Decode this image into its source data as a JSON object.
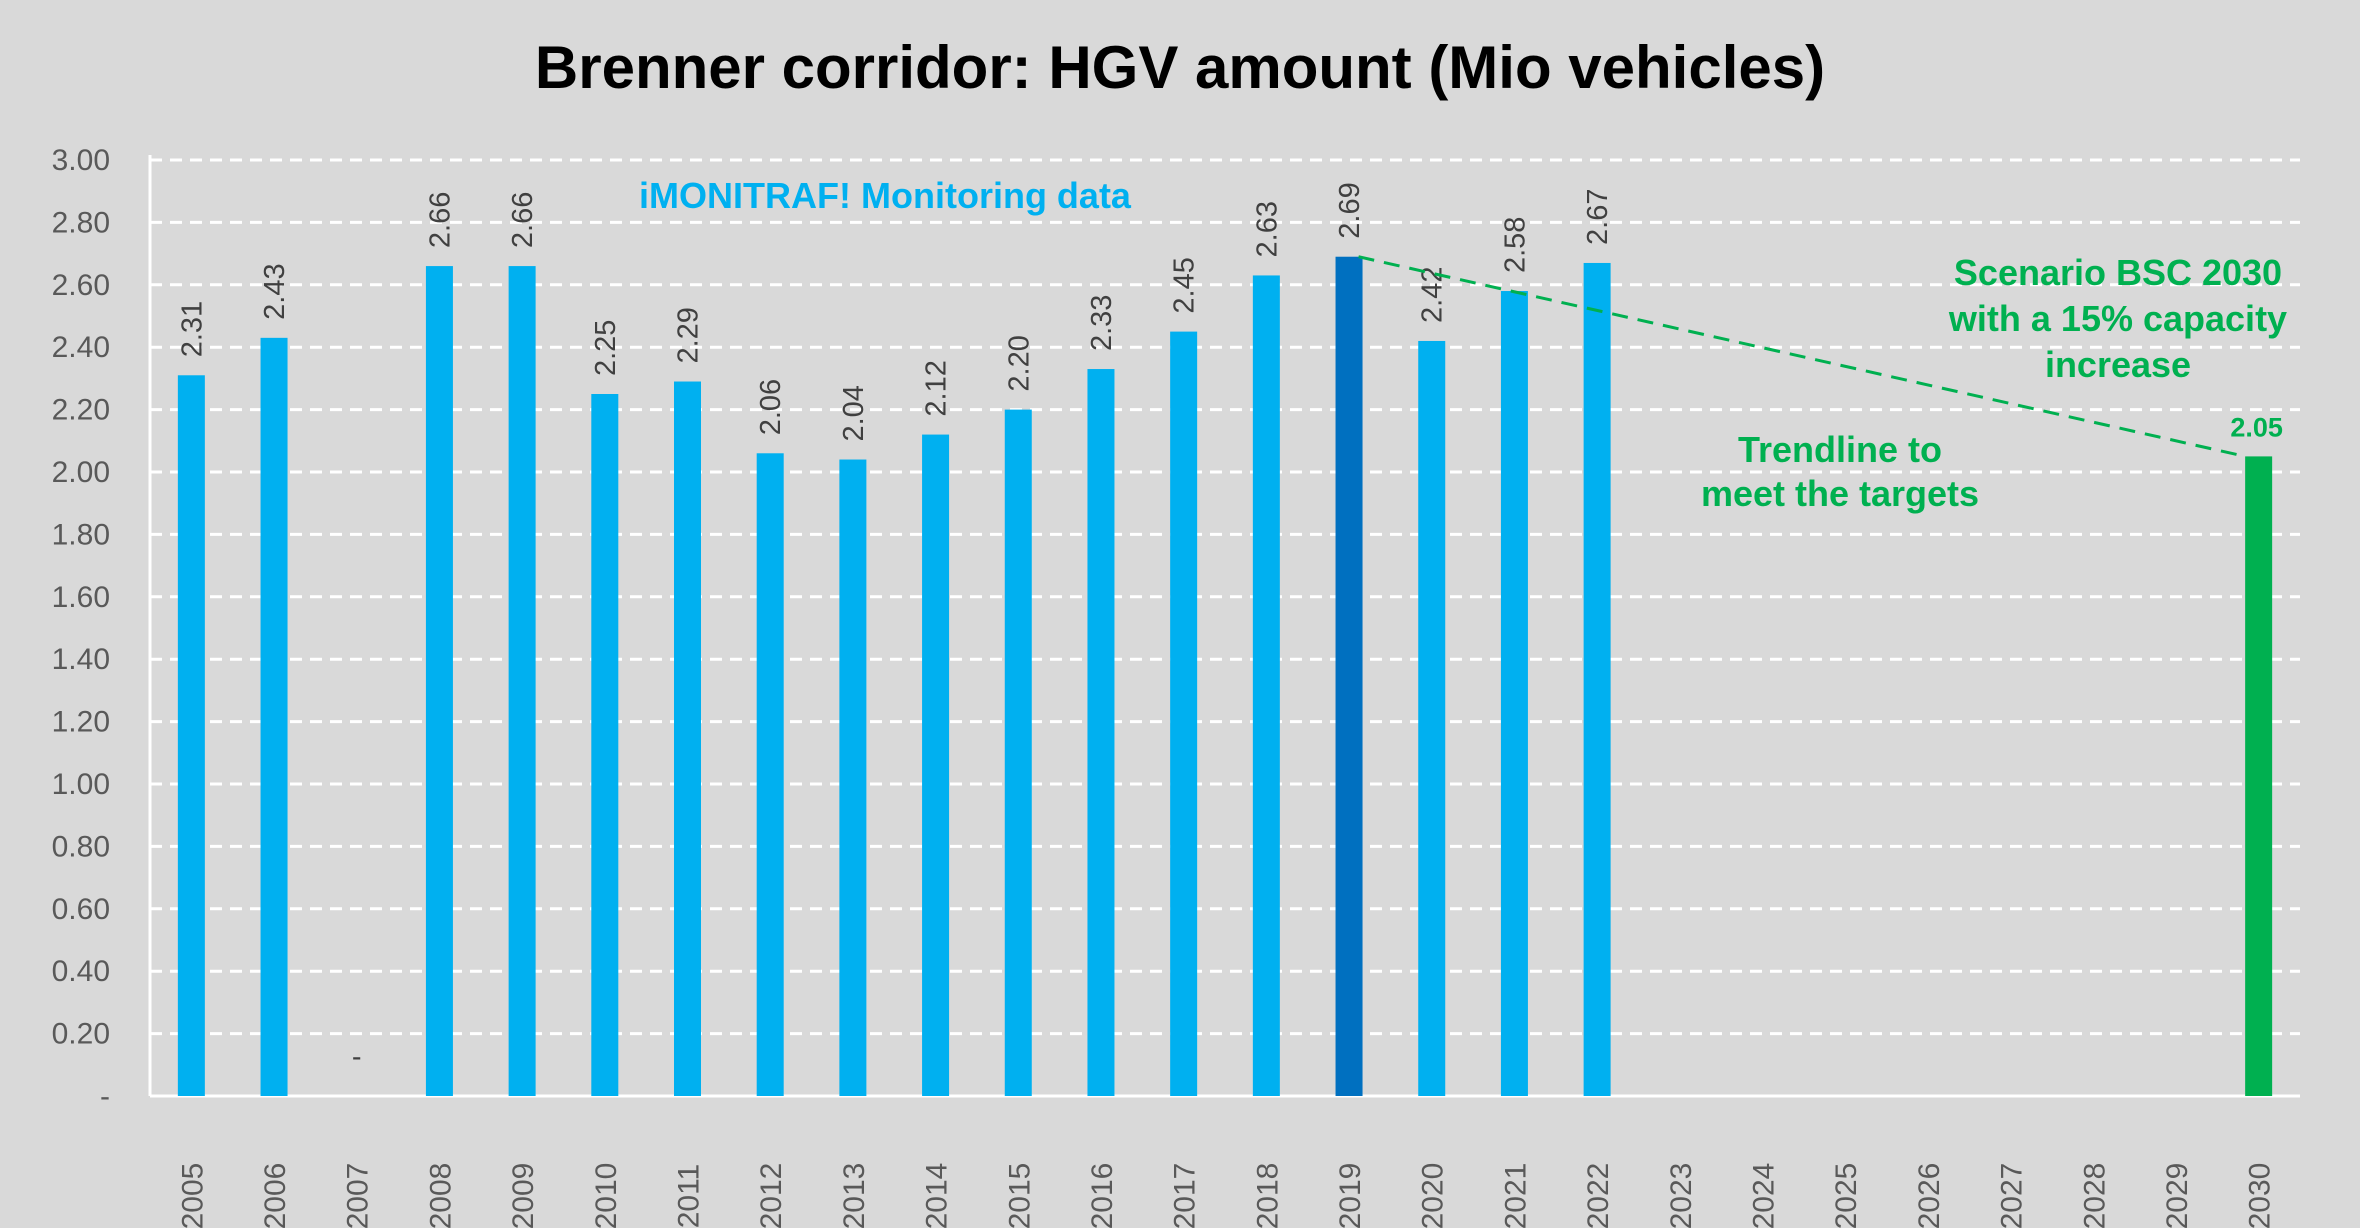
{
  "chart_data": {
    "type": "bar",
    "title": "Brenner corridor: HGV amount (Mio vehicles)",
    "xlabel": "",
    "ylabel": "",
    "ylim": [
      0,
      3.0
    ],
    "yticks": [
      "-",
      "0.20",
      "0.40",
      "0.60",
      "0.80",
      "1.00",
      "1.20",
      "1.40",
      "1.60",
      "1.80",
      "2.00",
      "2.20",
      "2.40",
      "2.60",
      "2.80",
      "3.00"
    ],
    "ytick_values": [
      0,
      0.2,
      0.4,
      0.6,
      0.8,
      1.0,
      1.2,
      1.4,
      1.6,
      1.8,
      2.0,
      2.2,
      2.4,
      2.6,
      2.8,
      3.0
    ],
    "grid": "horizontal dashed",
    "categories": [
      "2005",
      "2006",
      "2007",
      "2008",
      "2009",
      "2010",
      "2011",
      "2012",
      "2013",
      "2014",
      "2015",
      "2016",
      "2017",
      "2018",
      "2019",
      "2020",
      "2021",
      "2022",
      "2023",
      "2024",
      "2025",
      "2026",
      "2027",
      "2028",
      "2029",
      "2030"
    ],
    "values": [
      2.31,
      2.43,
      0,
      2.66,
      2.66,
      2.25,
      2.29,
      2.06,
      2.04,
      2.12,
      2.2,
      2.33,
      2.45,
      2.63,
      2.69,
      2.42,
      2.58,
      2.67,
      null,
      null,
      null,
      null,
      null,
      null,
      null,
      2.05
    ],
    "value_labels": [
      "2.31",
      "2.43",
      "-",
      "2.66",
      "2.66",
      "2.25",
      "2.29",
      "2.06",
      "2.04",
      "2.12",
      "2.20",
      "2.33",
      "2.45",
      "2.63",
      "2.69",
      "2.42",
      "2.58",
      "2.67",
      "",
      "",
      "",
      "",
      "",
      "",
      "",
      "2.05"
    ],
    "bar_colors": [
      "#00b0f0",
      "#00b0f0",
      "#00b0f0",
      "#00b0f0",
      "#00b0f0",
      "#00b0f0",
      "#00b0f0",
      "#00b0f0",
      "#00b0f0",
      "#00b0f0",
      "#00b0f0",
      "#00b0f0",
      "#00b0f0",
      "#00b0f0",
      "#0070c0",
      "#00b0f0",
      "#00b0f0",
      "#00b0f0",
      "#00b0f0",
      "#00b0f0",
      "#00b0f0",
      "#00b0f0",
      "#00b0f0",
      "#00b0f0",
      "#00b0f0",
      "#00b050"
    ],
    "trendline": {
      "from": [
        "2019",
        2.69
      ],
      "to": [
        "2030",
        2.05
      ],
      "color": "#00b050",
      "style": "dashed"
    },
    "annotations": {
      "monitoring": {
        "text": "iMONITRAF! Monitoring data",
        "color": "#00b0f0"
      },
      "trend": {
        "lines": [
          "Trendline to",
          "meet the targets"
        ],
        "color": "#00b050"
      },
      "scenario": {
        "lines": [
          "Scenario BSC 2030",
          "with a 15% capacity",
          "increase"
        ],
        "color": "#00b050"
      }
    },
    "colors": {
      "background": "#d9d9d9",
      "plot_background": "#d9d9d9",
      "gridline": "#ffffff",
      "bar": "#00b0f0",
      "highlight": "#0070c0",
      "scenario": "#00b050"
    }
  }
}
